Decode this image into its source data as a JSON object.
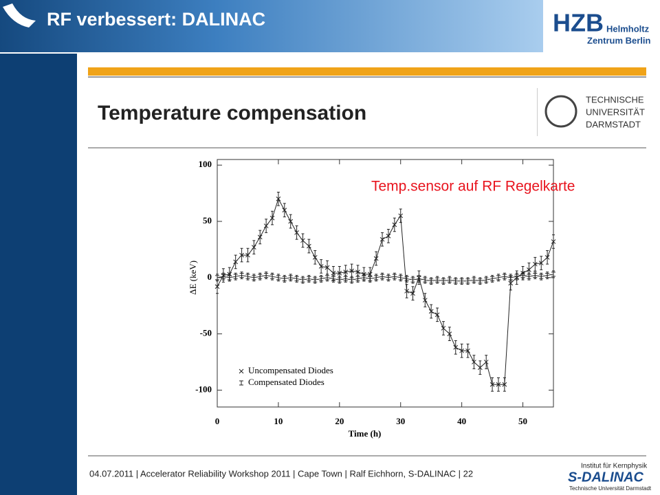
{
  "header": {
    "title": "RF verbessert: DALINAC",
    "logo": [
      "HZB",
      "Helmholtz",
      "Zentrum Berlin"
    ]
  },
  "slide_title": "Temperature compensation",
  "tu_logo": [
    "TECHNISCHE",
    "UNIVERSITÄT",
    "DARMSTADT"
  ],
  "footer": "04.07.2011  |  Accelerator Reliability  Workshop 2011 | Cape Town |  Ralf Eichhorn, S-DALINAC  |  22",
  "footer_logo": [
    "Institut für Kernphysik",
    "S-DALINAC",
    "Technische Universität Darmstadt"
  ],
  "chart_data": {
    "type": "line",
    "xlabel": "Time (h)",
    "ylabel": "ΔE (keV)",
    "annotation": "Temp.sensor auf RF Regelkarte",
    "x": [
      0,
      1,
      2,
      3,
      4,
      5,
      6,
      7,
      8,
      9,
      10,
      11,
      12,
      13,
      14,
      15,
      16,
      17,
      18,
      19,
      20,
      21,
      22,
      23,
      24,
      25,
      26,
      27,
      28,
      29,
      30,
      31,
      32,
      33,
      34,
      35,
      36,
      37,
      38,
      39,
      40,
      41,
      42,
      43,
      44,
      45,
      46,
      47,
      48,
      49,
      50,
      51,
      52,
      53,
      54,
      55
    ],
    "series": [
      {
        "name": "Uncompensated Diodes",
        "marker": "x",
        "color": "#222222",
        "error": 6,
        "values": [
          -8,
          2,
          3,
          14,
          20,
          20,
          27,
          36,
          46,
          53,
          70,
          60,
          50,
          40,
          33,
          28,
          18,
          10,
          9,
          4,
          4,
          5,
          6,
          5,
          3,
          3,
          17,
          34,
          37,
          47,
          55,
          -12,
          -14,
          0,
          -20,
          -30,
          -33,
          -45,
          -50,
          -62,
          -65,
          -65,
          -75,
          -80,
          -75,
          -95,
          -95,
          -95,
          -5,
          0,
          4,
          7,
          12,
          13,
          18,
          32
        ]
      },
      {
        "name": "Compensated Diodes",
        "marker": "I",
        "color": "#222222",
        "error": 3,
        "values": [
          0,
          1,
          0,
          1,
          2,
          1,
          0,
          1,
          2,
          1,
          0,
          -1,
          0,
          -1,
          -2,
          -1,
          -2,
          -1,
          0,
          -1,
          -2,
          -1,
          -2,
          -1,
          0,
          -1,
          0,
          1,
          0,
          1,
          0,
          -1,
          -2,
          -1,
          -2,
          -3,
          -2,
          -3,
          -2,
          -3,
          -3,
          -3,
          -2,
          -3,
          -2,
          -1,
          0,
          1,
          0,
          1,
          2,
          1,
          2,
          1,
          2,
          3
        ]
      }
    ],
    "xlim": [
      0,
      55
    ],
    "ylim": [
      -115,
      105
    ],
    "xticks": [
      0,
      10,
      20,
      30,
      40,
      50
    ],
    "yticks": [
      -100,
      -50,
      0,
      50,
      100
    ]
  }
}
